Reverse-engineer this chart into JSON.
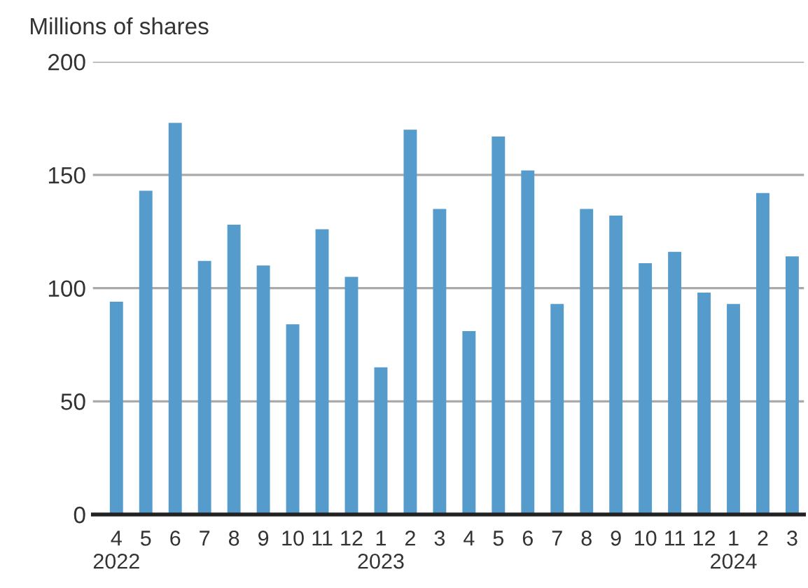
{
  "chart_data": {
    "type": "bar",
    "ylabel": "Millions of shares",
    "categories": [
      "4\n2022",
      "5",
      "6",
      "7",
      "8",
      "9",
      "10",
      "11",
      "12",
      "1\n2023",
      "2",
      "3",
      "4",
      "5",
      "6",
      "7",
      "8",
      "9",
      "10",
      "11",
      "12",
      "1\n2024",
      "2",
      "3"
    ],
    "values": [
      94,
      143,
      173,
      112,
      128,
      110,
      84,
      126,
      105,
      65,
      170,
      135,
      81,
      167,
      152,
      93,
      135,
      132,
      111,
      116,
      98,
      93,
      142,
      114
    ],
    "color": "#559bcb",
    "ylim": [
      0,
      200
    ],
    "yticks": [
      0,
      50,
      100,
      150,
      200
    ],
    "grid": "y",
    "legend": false
  }
}
